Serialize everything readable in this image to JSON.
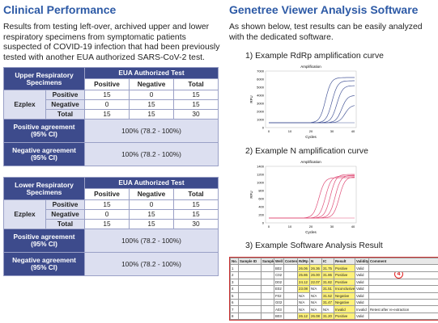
{
  "left": {
    "title": "Clinical Performance",
    "paragraph": "Results from testing left-over, archived upper and lower respiratory specimens from symptomatic patients suspected of COVID-19 infection that had been previously tested with another EUA authorized SARS-CoV-2 test.",
    "tables": [
      {
        "header_left": "Upper Respiratory Specimens",
        "header_right": "EUA Authorized Test",
        "subheaders": [
          "Positive",
          "Negative",
          "Total"
        ],
        "group": "Ezplex",
        "rows": [
          {
            "label": "Positive",
            "values": [
              15,
              0,
              15
            ]
          },
          {
            "label": "Negative",
            "values": [
              0,
              15,
              15
            ]
          },
          {
            "label": "Total",
            "values": [
              15,
              15,
              30
            ]
          }
        ],
        "agreements": [
          {
            "label": "Positive agreement (95% CI)",
            "value": "100% (78.2 - 100%)"
          },
          {
            "label": "Negative agreement (95% CI)",
            "value": "100% (78.2 - 100%)"
          }
        ]
      },
      {
        "header_left": "Lower Respiratory Specimens",
        "header_right": "EUA Authorized Test",
        "subheaders": [
          "Positive",
          "Negative",
          "Total"
        ],
        "group": "Ezplex",
        "rows": [
          {
            "label": "Positive",
            "values": [
              15,
              0,
              15
            ]
          },
          {
            "label": "Negative",
            "values": [
              0,
              15,
              15
            ]
          },
          {
            "label": "Total",
            "values": [
              15,
              15,
              30
            ]
          }
        ],
        "agreements": [
          {
            "label": "Positive agreement (95% CI)",
            "value": "100% (78.2 - 100%)"
          },
          {
            "label": "Negative agreement (95% CI)",
            "value": "100% (78.2 - 100%)"
          }
        ]
      }
    ]
  },
  "right": {
    "title": "Genetree Viewer Analysis Software",
    "paragraph": "As shown below, test results can be easily analyzed with the dedicated software.",
    "sections": [
      {
        "label": "1)  Example RdRp amplification curve",
        "chart": {
          "title": "Amplification",
          "x_label": "Cycles",
          "y_label": "RFU",
          "xticks": [
            0,
            10,
            20,
            30,
            40
          ],
          "yticks": [
            0,
            1000,
            2000,
            3000,
            4000,
            5000,
            6000,
            7000
          ]
        }
      },
      {
        "label": "2)  Example N amplification curve",
        "chart": {
          "title": "Amplification",
          "x_label": "Cycles",
          "y_label": "RFU",
          "xticks": [
            0,
            10,
            20,
            30,
            40
          ],
          "yticks": [
            0,
            200,
            400,
            600,
            800,
            1000,
            1200,
            1400
          ]
        }
      },
      {
        "label": "3)  Example Software Analysis Result"
      }
    ],
    "result": {
      "columns": [
        "No.",
        "Sample ID",
        "Sample",
        "Well",
        "Content",
        "RdRp",
        "N",
        "IC",
        "Result",
        "Validity",
        "Comment"
      ],
      "rows": [
        {
          "no": "1",
          "well": "B02",
          "rdrp": "26.06",
          "n": "26.36",
          "ic": "31.75",
          "result": "Positive",
          "validity": "Valid"
        },
        {
          "no": "2",
          "well": "C02",
          "rdrp": "25.86",
          "n": "26.00",
          "ic": "31.86",
          "result": "Positive",
          "validity": "Valid"
        },
        {
          "no": "3",
          "well": "D02",
          "rdrp": "24.12",
          "n": "22.07",
          "ic": "31.82",
          "result": "Positive",
          "validity": "Valid"
        },
        {
          "no": "4",
          "well": "E02",
          "rdrp": "23.08",
          "n": "N/A",
          "ic": "31.51",
          "result": "Inconclusive",
          "validity": "Valid"
        },
        {
          "no": "5",
          "well": "F02",
          "rdrp": "N/A",
          "n": "N/A",
          "ic": "31.52",
          "result": "Negative",
          "validity": "Valid"
        },
        {
          "no": "6",
          "well": "G02",
          "rdrp": "N/A",
          "n": "N/A",
          "ic": "31.47",
          "result": "Negative",
          "validity": "Valid"
        },
        {
          "no": "7",
          "well": "A03",
          "rdrp": "N/A",
          "n": "N/A",
          "ic": "N/A",
          "result": "Invalid",
          "validity": "Invalid",
          "comment": "Retest after re-extraction"
        },
        {
          "no": "8",
          "well": "B03",
          "rdrp": "26.12",
          "n": "26.08",
          "ic": "31.20",
          "result": "Positive",
          "validity": "Valid"
        }
      ],
      "marker": "4"
    }
  }
}
